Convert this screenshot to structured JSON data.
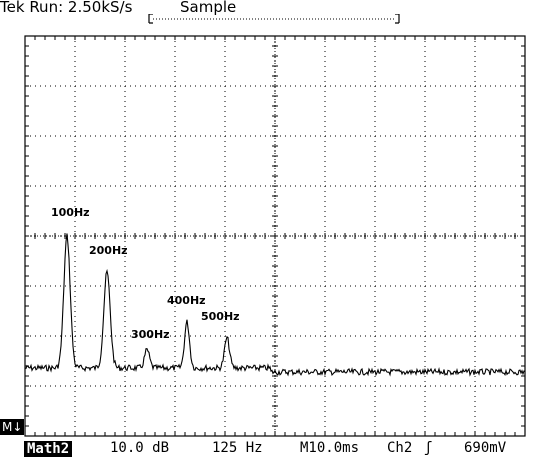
{
  "header": {
    "brand": "Tek",
    "run_label": "Run:",
    "sample_rate": "2.50kS/s",
    "acq_mode": "Sample"
  },
  "spectrum": {
    "peaks": [
      {
        "label": "100Hz",
        "freq_hz": 100
      },
      {
        "label": "200Hz",
        "freq_hz": 200
      },
      {
        "label": "300Hz",
        "freq_hz": 300
      },
      {
        "label": "400Hz",
        "freq_hz": 400
      },
      {
        "label": "500Hz",
        "freq_hz": 500
      }
    ]
  },
  "marker": {
    "label": "M↓"
  },
  "footer": {
    "math_label": "Math2",
    "vertical_scale": "10.0 dB",
    "freq_per_div": "125 Hz",
    "timebase": "M10.0ms",
    "trigger_channel": "Ch2",
    "trigger_slope": "ʃ",
    "trigger_level": "690mV"
  },
  "colors": {
    "trace": "#000000",
    "graticule": "#000000",
    "background": "#ffffff"
  }
}
